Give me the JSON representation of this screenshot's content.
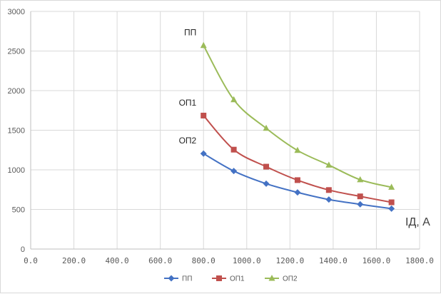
{
  "chart_data": {
    "type": "line",
    "title": "",
    "xlabel": "IД, A",
    "ylabel": "",
    "xlim": [
      0,
      1800
    ],
    "ylim": [
      0,
      3000
    ],
    "x_ticks": [
      "0.0",
      "200.0",
      "400.0",
      "600.0",
      "800.0",
      "1000.0",
      "1200.0",
      "1400.0",
      "1600.0",
      "1800.0"
    ],
    "y_ticks": [
      "0",
      "500",
      "1000",
      "1500",
      "2000",
      "2500",
      "3000"
    ],
    "grid": "vertical and horizontal major gridlines",
    "legend_position": "bottom",
    "x": [
      800,
      940,
      1090,
      1235,
      1380,
      1525,
      1670
    ],
    "series": [
      {
        "name": "ПП",
        "color": "#4472c4",
        "marker": "diamond",
        "values": [
          1205,
          985,
          825,
          715,
          625,
          565,
          510
        ]
      },
      {
        "name": "ОП1",
        "color": "#c0504d",
        "marker": "square",
        "values": [
          1685,
          1255,
          1040,
          870,
          745,
          665,
          590
        ]
      },
      {
        "name": "ОП2",
        "color": "#9bbb59",
        "marker": "triangle",
        "values": [
          2570,
          1885,
          1525,
          1245,
          1060,
          875,
          780
        ]
      }
    ],
    "annotations": [
      {
        "text": "ПП",
        "near_series": "ОП2"
      },
      {
        "text": "ОП1",
        "near_series": "ОП1"
      },
      {
        "text": "ОП2",
        "near_series": "ПП"
      }
    ]
  }
}
